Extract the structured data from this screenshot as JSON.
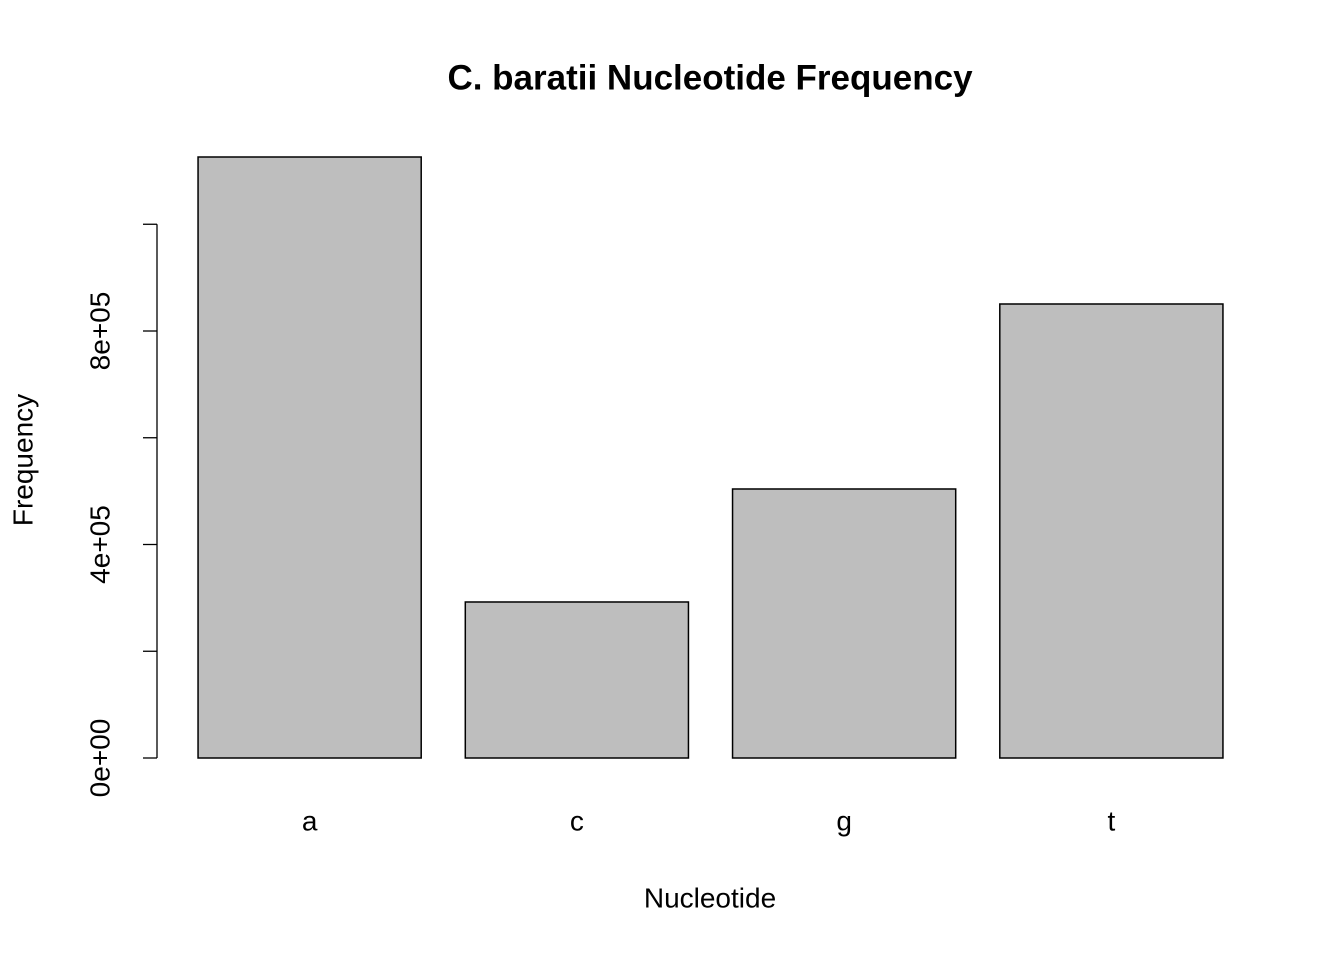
{
  "chart_data": {
    "type": "bar",
    "title": "C. baratii Nucleotide Frequency",
    "x_label": "Nucleotide",
    "y_label": "Frequency",
    "categories": [
      "a",
      "c",
      "g",
      "t"
    ],
    "values": [
      1126000,
      292300,
      504000,
      850600
    ],
    "color": "#bebebe",
    "ylim": [
      0,
      1126000
    ],
    "yticks": [
      {
        "value": 0,
        "label": "0e+00"
      },
      {
        "value": 400000,
        "label": "4e+05"
      },
      {
        "value": 800000,
        "label": "8e+05"
      }
    ],
    "yminor_ticks": [
      200000,
      600000,
      1000000
    ],
    "grid": false
  }
}
